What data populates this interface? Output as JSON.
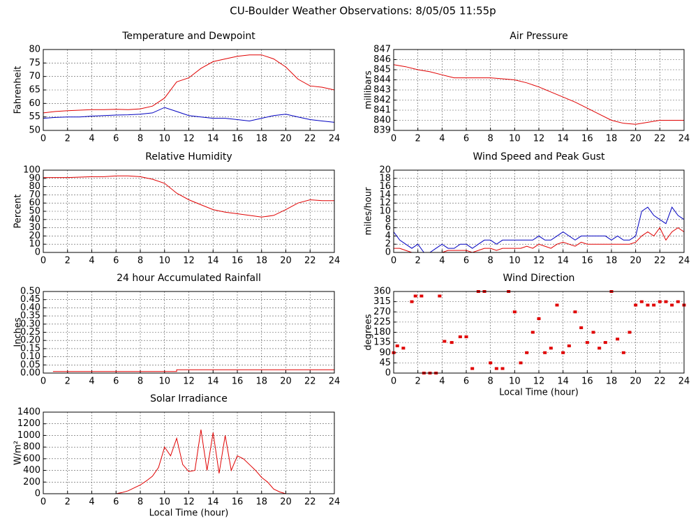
{
  "title": "CU-Boulder Weather Observations: 8/05/05 11:55p",
  "chart_data": [
    {
      "type": "line",
      "title": "Temperature and Dewpoint",
      "ylabel": "Fahrenheit",
      "x": [
        0,
        1,
        2,
        3,
        4,
        5,
        6,
        7,
        8,
        9,
        10,
        11,
        12,
        13,
        14,
        15,
        16,
        17,
        18,
        19,
        20,
        21,
        22,
        23,
        24
      ],
      "series": [
        {
          "color": "#e00000",
          "values": [
            56.5,
            57,
            57.3,
            57.5,
            57.7,
            57.7,
            57.8,
            57.7,
            58,
            59,
            62,
            68,
            69.5,
            73,
            75.5,
            76.5,
            77.5,
            78,
            78,
            76.5,
            73.5,
            69,
            66.5,
            66,
            65
          ]
        },
        {
          "color": "#0000c0",
          "values": [
            54.5,
            54.8,
            55,
            55,
            55.3,
            55.5,
            55.7,
            55.8,
            56,
            56.5,
            58.5,
            57,
            55.5,
            55,
            54.5,
            54.5,
            54,
            53.5,
            54.5,
            55.5,
            56,
            55,
            54,
            53.5,
            53
          ]
        }
      ],
      "xlim": [
        0,
        24
      ],
      "xticks": [
        0,
        2,
        4,
        6,
        8,
        10,
        12,
        14,
        16,
        18,
        20,
        22,
        24
      ],
      "ylim": [
        50,
        80
      ],
      "yticks": [
        50,
        55,
        60,
        65,
        70,
        75,
        80
      ],
      "grid": true
    },
    {
      "type": "line",
      "title": "Air Pressure",
      "ylabel": "millibars",
      "x": [
        0,
        1,
        2,
        3,
        4,
        5,
        6,
        7,
        8,
        9,
        10,
        11,
        12,
        13,
        14,
        15,
        16,
        17,
        18,
        19,
        20,
        21,
        22,
        23,
        24
      ],
      "series": [
        {
          "color": "#e00000",
          "values": [
            845.5,
            845.3,
            845,
            844.8,
            844.5,
            844.2,
            844.2,
            844.2,
            844.2,
            844.1,
            844,
            843.7,
            843.3,
            842.8,
            842.3,
            841.8,
            841.2,
            840.6,
            840,
            839.7,
            839.6,
            839.8,
            840,
            840,
            840
          ]
        }
      ],
      "xlim": [
        0,
        24
      ],
      "xticks": [
        0,
        2,
        4,
        6,
        8,
        10,
        12,
        14,
        16,
        18,
        20,
        22,
        24
      ],
      "ylim": [
        839,
        847
      ],
      "yticks": [
        839,
        840,
        841,
        842,
        843,
        844,
        845,
        846,
        847
      ],
      "grid": true
    },
    {
      "type": "line",
      "title": "Relative Humidity",
      "ylabel": "Percent",
      "x": [
        0,
        1,
        2,
        3,
        4,
        5,
        6,
        7,
        8,
        9,
        10,
        11,
        12,
        13,
        14,
        15,
        16,
        17,
        18,
        19,
        20,
        21,
        22,
        23,
        24
      ],
      "series": [
        {
          "color": "#e00000",
          "values": [
            91,
            91,
            91,
            91.5,
            92,
            92,
            93,
            93,
            92,
            89,
            84,
            72,
            64,
            58,
            52,
            49,
            47,
            45,
            43,
            45,
            52,
            60,
            64,
            63,
            63
          ]
        }
      ],
      "xlim": [
        0,
        24
      ],
      "xticks": [
        0,
        2,
        4,
        6,
        8,
        10,
        12,
        14,
        16,
        18,
        20,
        22,
        24
      ],
      "ylim": [
        0,
        100
      ],
      "yticks": [
        0,
        10,
        20,
        30,
        40,
        50,
        60,
        70,
        80,
        90,
        100
      ],
      "grid": true
    },
    {
      "type": "line",
      "title": "Wind Speed and Peak Gust",
      "ylabel": "miles/hour",
      "x": [
        0,
        0.5,
        1,
        1.5,
        2,
        2.5,
        3,
        3.5,
        4,
        4.5,
        5,
        5.5,
        6,
        6.5,
        7,
        7.5,
        8,
        8.5,
        9,
        9.5,
        10,
        10.5,
        11,
        11.5,
        12,
        12.5,
        13,
        13.5,
        14,
        14.5,
        15,
        15.5,
        16,
        16.5,
        17,
        17.5,
        18,
        18.5,
        19,
        19.5,
        20,
        20.5,
        21,
        21.5,
        22,
        22.5,
        23,
        23.5,
        24
      ],
      "series": [
        {
          "color": "#0000c0",
          "values": [
            5,
            3,
            2,
            1,
            2,
            0,
            0,
            1,
            2,
            1,
            1,
            2,
            2,
            1,
            2,
            3,
            3,
            2,
            3,
            3,
            3,
            3,
            3,
            3,
            4,
            3,
            3,
            4,
            5,
            4,
            3,
            4,
            4,
            4,
            4,
            4,
            3,
            4,
            3,
            3,
            4,
            10,
            11,
            9,
            8,
            7,
            11,
            9,
            8
          ]
        },
        {
          "color": "#e00000",
          "values": [
            1,
            1,
            0.5,
            0,
            0,
            0,
            0,
            0,
            0,
            0.5,
            0.5,
            0.5,
            0.5,
            0,
            0.5,
            1,
            1,
            0.5,
            1,
            1,
            1,
            1,
            1.5,
            1,
            2,
            1.5,
            1,
            2,
            2.5,
            2,
            1.5,
            2.5,
            2,
            2,
            2,
            2,
            2,
            2,
            2,
            2,
            2.5,
            4,
            5,
            4,
            6,
            3,
            5,
            6,
            5
          ]
        }
      ],
      "xlim": [
        0,
        24
      ],
      "xticks": [
        0,
        2,
        4,
        6,
        8,
        10,
        12,
        14,
        16,
        18,
        20,
        22,
        24
      ],
      "ylim": [
        0,
        20
      ],
      "yticks": [
        0,
        2,
        4,
        6,
        8,
        10,
        12,
        14,
        16,
        18,
        20
      ],
      "grid": true
    },
    {
      "type": "line",
      "title": "24 hour Accumulated Rainfall",
      "ylabel": "Inches",
      "x": [
        0.8,
        11,
        11,
        24
      ],
      "series": [
        {
          "color": "#e00000",
          "values": [
            0.01,
            0.01,
            0.02,
            0.02
          ]
        }
      ],
      "xlim": [
        0,
        24
      ],
      "xticks": [
        0,
        2,
        4,
        6,
        8,
        10,
        12,
        14,
        16,
        18,
        20,
        22,
        24
      ],
      "ylim": [
        0,
        0.5
      ],
      "yticks": [
        {
          "value": 0,
          "label": "0.00"
        },
        {
          "value": 0.05,
          "label": "0.05"
        },
        {
          "value": 0.1,
          "label": "0.10"
        },
        {
          "value": 0.15,
          "label": "0.15"
        },
        {
          "value": 0.2,
          "label": "0.20"
        },
        {
          "value": 0.25,
          "label": "0.25"
        },
        {
          "value": 0.3,
          "label": "0.30"
        },
        {
          "value": 0.35,
          "label": "0.35"
        },
        {
          "value": 0.4,
          "label": "0.40"
        },
        {
          "value": 0.45,
          "label": "0.45"
        },
        {
          "value": 0.5,
          "label": "0.50"
        }
      ],
      "grid": true
    },
    {
      "type": "scatter",
      "title": "Wind Direction",
      "ylabel": "degrees",
      "xlabel": "Local Time (hour)",
      "color": "#e00000",
      "x": [
        0,
        0.3,
        0.8,
        1.5,
        1.8,
        2.3,
        2.5,
        3,
        3.5,
        3.8,
        4.2,
        4.8,
        5.5,
        6,
        6.5,
        7,
        7.5,
        8,
        8.5,
        9,
        9.5,
        10,
        10.5,
        11,
        11.5,
        12,
        12.5,
        13,
        13.5,
        14,
        14.5,
        15,
        15.5,
        16,
        16.5,
        17,
        17.5,
        18,
        18.5,
        19,
        19.5,
        20,
        20.5,
        21,
        21.5,
        22,
        22.5,
        23,
        23.5,
        24
      ],
      "values": [
        90,
        120,
        110,
        315,
        340,
        340,
        0,
        0,
        0,
        340,
        140,
        135,
        160,
        160,
        20,
        360,
        360,
        45,
        20,
        20,
        360,
        270,
        45,
        90,
        180,
        240,
        90,
        110,
        300,
        90,
        120,
        270,
        200,
        135,
        180,
        110,
        135,
        360,
        150,
        90,
        180,
        300,
        315,
        300,
        300,
        315,
        315,
        300,
        315,
        300
      ],
      "xlim": [
        0,
        24
      ],
      "xticks": [
        0,
        2,
        4,
        6,
        8,
        10,
        12,
        14,
        16,
        18,
        20,
        22,
        24
      ],
      "ylim": [
        0,
        360
      ],
      "yticks": [
        0,
        45,
        90,
        135,
        180,
        225,
        270,
        315,
        360
      ],
      "grid": true
    },
    {
      "type": "line",
      "title": "Solar Irradiance",
      "ylabel": "W/m²",
      "xlabel": "Local Time (hour)",
      "x": [
        0,
        0.5,
        1,
        1.5,
        2,
        2.5,
        3,
        3.5,
        4,
        4.5,
        5,
        5.5,
        6,
        6.5,
        7,
        7.5,
        8,
        8.5,
        9,
        9.5,
        10,
        10.5,
        11,
        11.5,
        12,
        12.5,
        13,
        13.5,
        14,
        14.5,
        15,
        15.5,
        16,
        16.5,
        17,
        17.5,
        18,
        18.5,
        19,
        19.5,
        20,
        20.5,
        21,
        21.5,
        22,
        22.5,
        23,
        23.5,
        24
      ],
      "series": [
        {
          "color": "#e00000",
          "values": [
            0,
            0,
            0,
            0,
            0,
            0,
            0,
            0,
            0,
            0,
            0,
            0,
            0,
            20,
            50,
            100,
            150,
            220,
            300,
            450,
            800,
            650,
            950,
            500,
            380,
            400,
            1100,
            400,
            1050,
            350,
            1000,
            400,
            650,
            600,
            500,
            400,
            280,
            200,
            80,
            30,
            0,
            0,
            0,
            0,
            0,
            0,
            0,
            0,
            0
          ]
        }
      ],
      "xlim": [
        0,
        24
      ],
      "xticks": [
        0,
        2,
        4,
        6,
        8,
        10,
        12,
        14,
        16,
        18,
        20,
        22,
        24
      ],
      "ylim": [
        0,
        1400
      ],
      "yticks": [
        0,
        200,
        400,
        600,
        800,
        1000,
        1200,
        1400
      ],
      "grid": true
    }
  ]
}
